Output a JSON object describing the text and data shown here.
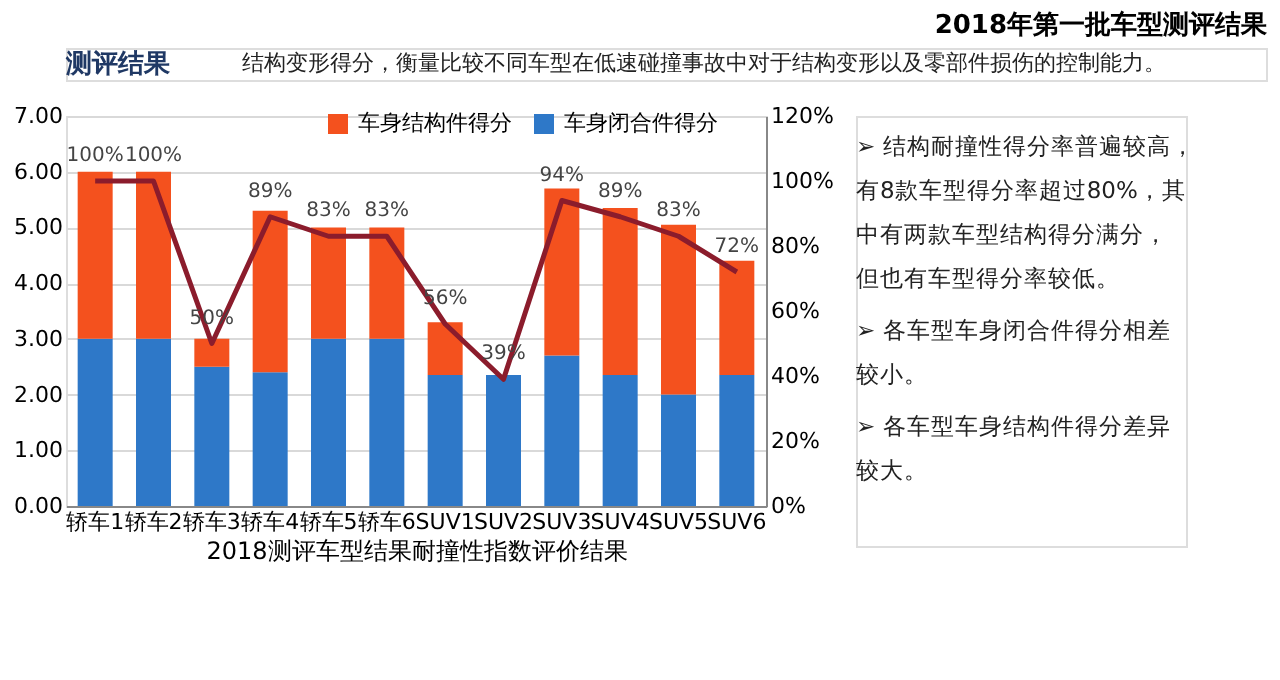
{
  "chart_data": {
    "type": "bar",
    "title": "2018年第一批车型测评结果",
    "subtitle": "测评结果",
    "xlabel": "2018测评车型结果耐撞性指数评价结果",
    "annotations": [
      "结构变形得分，衡量比较不同车型在低速碰撞事故中对于结构变形以及零部件损伤的控制能力。",
      "➢ 结构耐撞性得分率普遍较高，有8款车型得分率超过80%，其中有两款车型结构得分满分，但也有车型得分率较低。",
      "➢ 各车型车身闭合件得分相差较小。",
      "➢ 各车型车身结构件得分差异较大。"
    ],
    "categories": [
      "轿车1",
      "轿车2",
      "轿车3",
      "轿车4",
      "轿车5",
      "轿车6",
      "SUV1",
      "SUV2",
      "SUV3",
      "SUV4",
      "SUV5",
      "SUV6"
    ],
    "stacked": true,
    "series": [
      {
        "name": "车身闭合件得分",
        "color": "#2e78c8",
        "type": "bar",
        "values": [
          3.0,
          3.0,
          2.5,
          2.4,
          3.0,
          3.0,
          2.35,
          2.35,
          2.7,
          2.35,
          2.0,
          2.35
        ]
      },
      {
        "name": "车身结构件得分",
        "color": "#f4511e",
        "type": "bar",
        "values": [
          3.0,
          3.0,
          0.5,
          2.9,
          2.0,
          2.0,
          0.95,
          0.0,
          3.0,
          3.0,
          3.05,
          2.05
        ]
      },
      {
        "color": "#8b1c2c",
        "type": "line",
        "axis": "y2",
        "values": [
          100,
          100,
          50,
          89,
          83,
          83,
          56,
          39,
          94,
          89,
          83,
          72
        ],
        "value_labels": [
          "100%",
          "100%",
          "50%",
          "89%",
          "83%",
          "83%",
          "56%",
          "39%",
          "94%",
          "89%",
          "83%",
          "72%"
        ]
      }
    ],
    "ylim": [
      0,
      7
    ],
    "yticks": [
      {
        "value": 0,
        "label": "0.00"
      },
      {
        "value": 1,
        "label": "1.00"
      },
      {
        "value": 2,
        "label": "2.00"
      },
      {
        "value": 3,
        "label": "3.00"
      },
      {
        "value": 4,
        "label": "4.00"
      },
      {
        "value": 5,
        "label": "5.00"
      },
      {
        "value": 6,
        "label": "6.00"
      },
      {
        "value": 7,
        "label": "7.00"
      }
    ],
    "y2lim": [
      0,
      120
    ],
    "y2ticks": [
      {
        "value": 0,
        "label": "0%"
      },
      {
        "value": 20,
        "label": "20%"
      },
      {
        "value": 40,
        "label": "40%"
      },
      {
        "value": 60,
        "label": "60%"
      },
      {
        "value": 80,
        "label": "80%"
      },
      {
        "value": 100,
        "label": "100%"
      },
      {
        "value": 120,
        "label": "120%"
      }
    ],
    "grid": "y",
    "legend": "top",
    "marker": "none",
    "line_style": "solid"
  }
}
